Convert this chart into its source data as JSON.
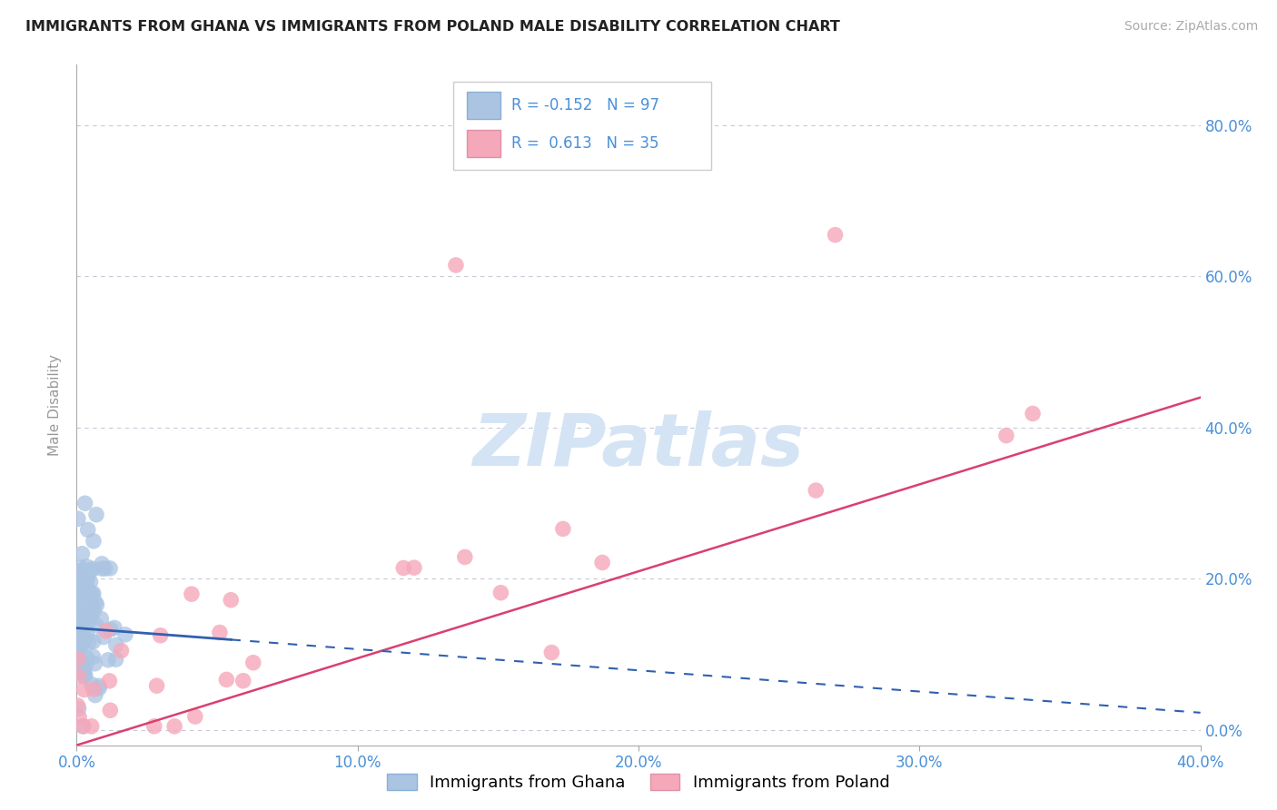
{
  "title": "IMMIGRANTS FROM GHANA VS IMMIGRANTS FROM POLAND MALE DISABILITY CORRELATION CHART",
  "source": "Source: ZipAtlas.com",
  "ylabel": "Male Disability",
  "xlim": [
    0.0,
    0.4
  ],
  "ylim": [
    -0.02,
    0.88
  ],
  "xtick_vals": [
    0.0,
    0.1,
    0.2,
    0.3,
    0.4
  ],
  "ytick_vals": [
    0.0,
    0.2,
    0.4,
    0.6,
    0.8
  ],
  "ghana_R": -0.152,
  "ghana_N": 97,
  "poland_R": 0.613,
  "poland_N": 35,
  "ghana_color": "#aac4e2",
  "poland_color": "#f5a8ba",
  "ghana_line_color": "#3060b0",
  "poland_line_color": "#d94070",
  "background_color": "#ffffff",
  "grid_color": "#c8c8d8",
  "title_color": "#222222",
  "axis_label_color": "#4a90d9",
  "tick_label_color": "#4a90d9",
  "watermark_color": "#d4e4f4",
  "legend_label_color": "#4a90d9",
  "poland_line_intercept": -0.02,
  "poland_line_slope": 1.15,
  "ghana_line_intercept": 0.135,
  "ghana_line_slope": -0.28
}
